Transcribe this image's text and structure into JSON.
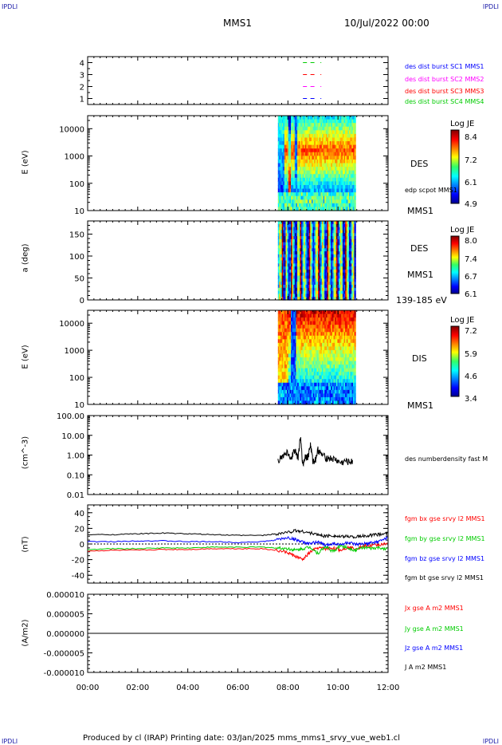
{
  "header": {
    "corner_tl": "IPDLI",
    "corner_tr": "IPDLI",
    "corner_bl": "IPDLI",
    "corner_br": "IPDLI",
    "title_left": "MMS1",
    "title_right": "10/Jul/2022 00:00"
  },
  "footer": {
    "text": "Produced by cl (IRAP)   Printing date: 03/Jan/2025   mms_mms1_srvy_vue_web1.cl"
  },
  "colors": {
    "mms1": "#0000ff",
    "mms2": "#ff00ff",
    "mms3": "#ff0000",
    "mms4": "#00cc00",
    "corner": "#1a1aa8"
  },
  "chart_data": [
    {
      "type": "scatter",
      "panel": "availability",
      "ylabel": "",
      "ylim": [
        0.5,
        4.5
      ],
      "yticks": [
        "1",
        "2",
        "3",
        "4"
      ],
      "series": [
        {
          "name": "des dist burst SC1 MMS1",
          "y": 1,
          "color": "#0000ff",
          "x": [
            8.6,
            8.9,
            9.3
          ]
        },
        {
          "name": "des dist burst SC2 MMS2",
          "y": 2,
          "color": "#ff00ff",
          "x": [
            8.6,
            8.9,
            9.3
          ]
        },
        {
          "name": "des dist burst SC3 MMS3",
          "y": 3,
          "color": "#ff0000",
          "x": [
            8.6,
            8.9,
            9.3
          ]
        },
        {
          "name": "des dist burst SC4 MMS4",
          "y": 4,
          "color": "#00cc00",
          "x": [
            8.6,
            8.9,
            9.3
          ]
        }
      ]
    },
    {
      "type": "heatmap",
      "panel": "des-energy",
      "ylabel": "E (eV)",
      "yscale": "log",
      "ylim": [
        10,
        30000
      ],
      "yticks": [
        "10",
        "100",
        "1000",
        "10000"
      ],
      "x_range_hours": [
        7.6,
        10.7
      ],
      "side_label": "DES",
      "side_small": "edp scpot MMS1",
      "bottom_label": "MMS1",
      "colorbar": {
        "title": "Log JE",
        "ticks": [
          "8.4",
          "7.2",
          "6.1",
          "4.9"
        ]
      }
    },
    {
      "type": "heatmap",
      "panel": "des-pitch",
      "ylabel": "a (deg)",
      "ylim": [
        0,
        180
      ],
      "yticks": [
        "0",
        "50",
        "100",
        "150"
      ],
      "x_range_hours": [
        7.6,
        10.7
      ],
      "side_label": "DES",
      "side_label2": "MMS1",
      "bottom_label": "139-185 eV",
      "colorbar": {
        "title": "Log JE",
        "ticks": [
          "8.0",
          "7.4",
          "6.7",
          "6.1"
        ]
      }
    },
    {
      "type": "heatmap",
      "panel": "dis-energy",
      "ylabel": "E (eV)",
      "yscale": "log",
      "ylim": [
        10,
        30000
      ],
      "yticks": [
        "10",
        "100",
        "1000",
        "10000"
      ],
      "x_range_hours": [
        7.6,
        10.7
      ],
      "side_label": "DIS",
      "bottom_label": "MMS1",
      "colorbar": {
        "title": "Log JE",
        "ticks": [
          "7.2",
          "5.9",
          "4.6",
          "3.4"
        ]
      }
    },
    {
      "type": "line",
      "panel": "density",
      "ylabel": "(cm^-3)",
      "yscale": "log",
      "ylim": [
        0.01,
        100
      ],
      "yticks": [
        "100.00",
        "10.00",
        "1.00",
        "0.10",
        "0.01"
      ],
      "series": [
        {
          "name": "des numberdensity fast M",
          "color": "#000000",
          "x": [
            7.6,
            7.8,
            8.0,
            8.1,
            8.2,
            8.3,
            8.4,
            8.5,
            8.6,
            8.7,
            8.8,
            8.9,
            9.0,
            9.1,
            9.2,
            9.3,
            9.5,
            9.7,
            9.9,
            10.1,
            10.3,
            10.5,
            10.6
          ],
          "y": [
            0.6,
            0.9,
            1.5,
            0.5,
            1.2,
            2.0,
            0.7,
            8.0,
            0.3,
            1.0,
            0.8,
            3.5,
            0.5,
            0.6,
            2.0,
            1.2,
            0.8,
            0.7,
            0.6,
            0.4,
            0.5,
            0.45,
            0.5
          ]
        }
      ]
    },
    {
      "type": "line",
      "panel": "magnetic-field",
      "ylabel": "(nT)",
      "ylim": [
        -50,
        50
      ],
      "yticks": [
        "40",
        "20",
        "0",
        "-20",
        "-40"
      ],
      "series": [
        {
          "name": "fgm bx gse srvy l2 MMS1",
          "color": "#ff0000",
          "x": [
            0,
            1,
            2,
            3,
            4,
            5,
            6,
            7,
            7.5,
            8,
            8.3,
            8.6,
            8.9,
            9.2,
            9.5,
            9.8,
            10.1,
            10.4,
            10.7,
            11,
            11.3,
            11.6,
            12
          ],
          "y": [
            -9,
            -8,
            -8,
            -7,
            -7,
            -6,
            -6,
            -6,
            -8,
            -11,
            -16,
            -20,
            -10,
            -5,
            -6,
            -5,
            -8,
            -4,
            -6,
            -3,
            -2,
            -1,
            0
          ]
        },
        {
          "name": "fgm by gse srvy l2 MMS1",
          "color": "#00cc00",
          "x": [
            0,
            1,
            2,
            3,
            4,
            5,
            6,
            7,
            7.5,
            8,
            8.3,
            8.6,
            8.9,
            9.2,
            9.5,
            9.8,
            10.1,
            10.4,
            10.7,
            11,
            11.3,
            11.6,
            12
          ],
          "y": [
            -7,
            -6,
            -6,
            -5,
            -5,
            -4,
            -4,
            -4,
            -5,
            -6,
            -8,
            -6,
            -4,
            -12,
            -3,
            -10,
            -2,
            -5,
            -8,
            -4,
            -6,
            -5,
            -6
          ]
        },
        {
          "name": "fgm bz gse srvy l2 MMS1",
          "color": "#0000ff",
          "x": [
            0,
            1,
            2,
            3,
            4,
            5,
            6,
            7,
            7.5,
            8,
            8.3,
            8.6,
            8.9,
            9.2,
            9.5,
            9.8,
            10.1,
            10.4,
            10.7,
            11,
            11.3,
            11.6,
            12
          ],
          "y": [
            3,
            3,
            4,
            4,
            3,
            3,
            2,
            3,
            5,
            8,
            6,
            2,
            0,
            3,
            -2,
            1,
            -1,
            2,
            -1,
            0,
            1,
            3,
            8
          ]
        },
        {
          "name": "fgm bt gse srvy l2 MMS1",
          "color": "#000000",
          "x": [
            0,
            1,
            2,
            3,
            4,
            5,
            6,
            7,
            7.5,
            8,
            8.3,
            8.6,
            8.9,
            9.2,
            9.5,
            9.8,
            10.1,
            10.4,
            10.7,
            11,
            11.3,
            11.6,
            12
          ],
          "y": [
            12,
            12,
            13,
            14,
            13,
            12,
            11,
            11,
            13,
            15,
            17,
            16,
            14,
            12,
            10,
            11,
            9,
            10,
            9,
            10,
            11,
            12,
            14
          ]
        }
      ]
    },
    {
      "type": "line",
      "panel": "current-density",
      "ylabel": "(A/m2)",
      "ylim": [
        -1e-05,
        1e-05
      ],
      "yticks": [
        "0.000010",
        "0.000005",
        "0.000000",
        "-0.000005",
        "-0.000010"
      ],
      "series": [
        {
          "name": "Jx gse A m2 MMS1",
          "color": "#ff0000",
          "x": [
            0,
            12
          ],
          "y": [
            0,
            0
          ]
        },
        {
          "name": "Jy gse A m2 MMS1",
          "color": "#00cc00",
          "x": [
            0,
            12
          ],
          "y": [
            0,
            0
          ]
        },
        {
          "name": "Jz gse A m2 MMS1",
          "color": "#0000ff",
          "x": [
            0,
            12
          ],
          "y": [
            0,
            0
          ]
        },
        {
          "name": "J A m2 MMS1",
          "color": "#000000",
          "x": [
            0,
            12
          ],
          "y": [
            0,
            0
          ]
        }
      ]
    }
  ],
  "xaxis": {
    "ticks": [
      "00:00",
      "02:00",
      "04:00",
      "06:00",
      "08:00",
      "10:00",
      "12:00"
    ],
    "range_hours": [
      0,
      12
    ]
  }
}
